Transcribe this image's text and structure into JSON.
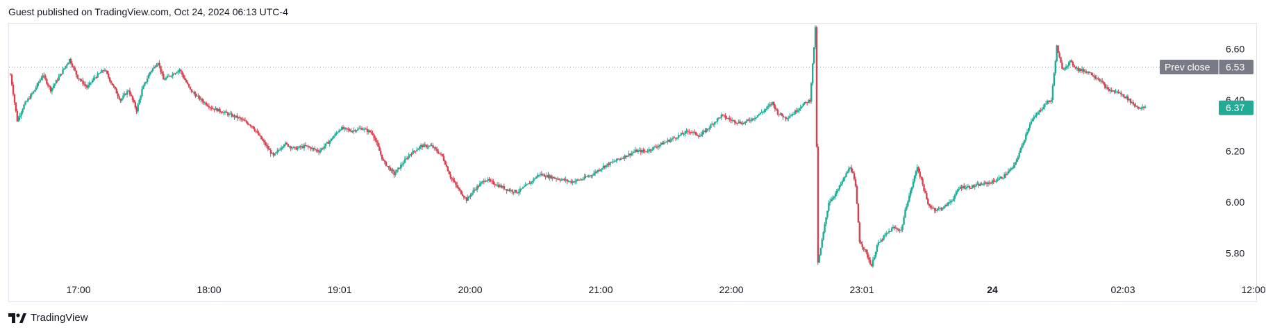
{
  "header": {
    "published_text": "Guest published on TradingView.com, Oct 24, 2024 06:13 UTC-4"
  },
  "footer": {
    "brand": "TradingView"
  },
  "colors": {
    "up": "#26a69a",
    "down": "#ef5350",
    "up_candle": "#22ab94",
    "down_candle": "#d6404f",
    "prev_close_badge": "#787b86",
    "last_price_badge": "#22ab94",
    "dotted_line": "#9598a1"
  },
  "chart_data": {
    "type": "candlestick",
    "y_ticks": [
      "6.60",
      "6.40",
      "6.20",
      "6.00",
      "5.80"
    ],
    "ylim": [
      5.72,
      6.7
    ],
    "x_ticks": [
      "17:00",
      "18:00",
      "19:01",
      "20:00",
      "21:00",
      "22:00",
      "23:01",
      "24",
      "02:03",
      "12:00"
    ],
    "x_tick_bold": [
      false,
      false,
      false,
      false,
      false,
      false,
      false,
      true,
      false,
      false
    ],
    "prev_close": {
      "label": "Prev close",
      "value": "6.53",
      "price": 6.53
    },
    "last_price": {
      "value": "6.37",
      "price": 6.37
    },
    "path": [
      [
        0,
        6.5
      ],
      [
        5,
        6.32
      ],
      [
        10,
        6.38
      ],
      [
        18,
        6.44
      ],
      [
        24,
        6.5
      ],
      [
        30,
        6.44
      ],
      [
        36,
        6.49
      ],
      [
        44,
        6.56
      ],
      [
        50,
        6.49
      ],
      [
        57,
        6.45
      ],
      [
        63,
        6.49
      ],
      [
        70,
        6.52
      ],
      [
        76,
        6.46
      ],
      [
        82,
        6.4
      ],
      [
        88,
        6.44
      ],
      [
        94,
        6.36
      ],
      [
        98,
        6.44
      ],
      [
        104,
        6.51
      ],
      [
        110,
        6.55
      ],
      [
        114,
        6.48
      ],
      [
        120,
        6.5
      ],
      [
        126,
        6.52
      ],
      [
        134,
        6.44
      ],
      [
        142,
        6.4
      ],
      [
        150,
        6.37
      ],
      [
        160,
        6.35
      ],
      [
        170,
        6.33
      ],
      [
        180,
        6.3
      ],
      [
        188,
        6.24
      ],
      [
        196,
        6.18
      ],
      [
        204,
        6.23
      ],
      [
        212,
        6.21
      ],
      [
        220,
        6.22
      ],
      [
        230,
        6.2
      ],
      [
        238,
        6.24
      ],
      [
        246,
        6.29
      ],
      [
        254,
        6.28
      ],
      [
        262,
        6.29
      ],
      [
        270,
        6.27
      ],
      [
        278,
        6.16
      ],
      [
        286,
        6.11
      ],
      [
        292,
        6.15
      ],
      [
        298,
        6.19
      ],
      [
        306,
        6.22
      ],
      [
        314,
        6.22
      ],
      [
        322,
        6.18
      ],
      [
        328,
        6.1
      ],
      [
        334,
        6.05
      ],
      [
        340,
        6.01
      ],
      [
        346,
        6.05
      ],
      [
        354,
        6.09
      ],
      [
        362,
        6.07
      ],
      [
        370,
        6.05
      ],
      [
        378,
        6.04
      ],
      [
        386,
        6.07
      ],
      [
        394,
        6.11
      ],
      [
        402,
        6.1
      ],
      [
        410,
        6.09
      ],
      [
        418,
        6.08
      ],
      [
        426,
        6.09
      ],
      [
        434,
        6.11
      ],
      [
        442,
        6.14
      ],
      [
        450,
        6.16
      ],
      [
        458,
        6.18
      ],
      [
        466,
        6.2
      ],
      [
        474,
        6.2
      ],
      [
        482,
        6.22
      ],
      [
        490,
        6.24
      ],
      [
        498,
        6.26
      ],
      [
        506,
        6.28
      ],
      [
        514,
        6.26
      ],
      [
        522,
        6.3
      ],
      [
        530,
        6.34
      ],
      [
        538,
        6.32
      ],
      [
        546,
        6.31
      ],
      [
        554,
        6.33
      ],
      [
        562,
        6.36
      ],
      [
        568,
        6.39
      ],
      [
        572,
        6.35
      ],
      [
        578,
        6.33
      ],
      [
        584,
        6.35
      ],
      [
        590,
        6.38
      ],
      [
        596,
        6.4
      ],
      [
        600,
        6.68
      ],
      [
        602,
        5.76
      ],
      [
        605,
        5.85
      ],
      [
        610,
        6.0
      ],
      [
        616,
        6.04
      ],
      [
        622,
        6.1
      ],
      [
        626,
        6.14
      ],
      [
        628,
        6.11
      ],
      [
        630,
        6.06
      ],
      [
        633,
        5.85
      ],
      [
        638,
        5.8
      ],
      [
        642,
        5.75
      ],
      [
        646,
        5.83
      ],
      [
        652,
        5.87
      ],
      [
        658,
        5.9
      ],
      [
        664,
        5.89
      ],
      [
        668,
        5.99
      ],
      [
        672,
        6.06
      ],
      [
        676,
        6.14
      ],
      [
        680,
        6.07
      ],
      [
        684,
        5.99
      ],
      [
        690,
        5.97
      ],
      [
        696,
        5.98
      ],
      [
        702,
        6.01
      ],
      [
        708,
        6.06
      ],
      [
        716,
        6.06
      ],
      [
        724,
        6.07
      ],
      [
        732,
        6.08
      ],
      [
        740,
        6.1
      ],
      [
        748,
        6.14
      ],
      [
        754,
        6.22
      ],
      [
        760,
        6.31
      ],
      [
        766,
        6.35
      ],
      [
        772,
        6.39
      ],
      [
        776,
        6.4
      ],
      [
        780,
        6.61
      ],
      [
        784,
        6.52
      ],
      [
        790,
        6.55
      ],
      [
        796,
        6.52
      ],
      [
        804,
        6.51
      ],
      [
        812,
        6.48
      ],
      [
        818,
        6.44
      ],
      [
        826,
        6.43
      ],
      [
        832,
        6.41
      ],
      [
        838,
        6.38
      ],
      [
        842,
        6.37
      ],
      [
        846,
        6.37
      ]
    ]
  }
}
